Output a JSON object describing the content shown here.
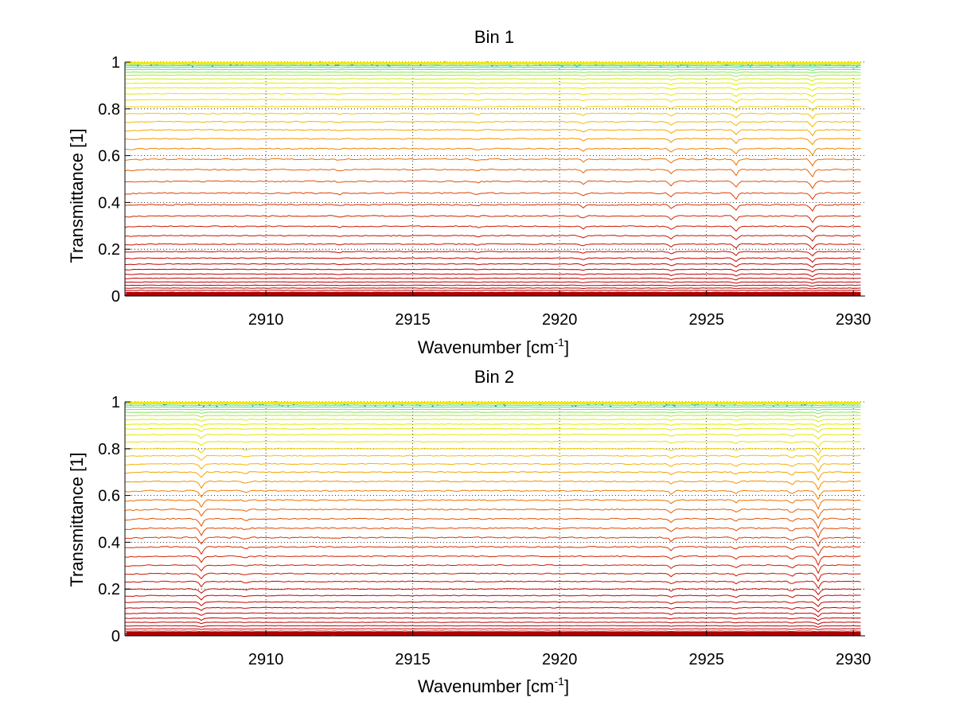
{
  "chart_data": [
    {
      "type": "line",
      "title": "Bin 1",
      "xlabel_base": "Wavenumber [cm",
      "xlabel_sup": "-1",
      "xlabel_end": "]",
      "ylabel": "Transmittance [1]",
      "xlim": [
        2905.2,
        2930.4
      ],
      "ylim": [
        0,
        1
      ],
      "xticks": [
        2910,
        2915,
        2920,
        2925,
        2930
      ],
      "xtick_labels": [
        "2910",
        "2915",
        "2920",
        "2925",
        "2930"
      ],
      "yticks": [
        0,
        0.2,
        0.4,
        0.6,
        0.8,
        1
      ],
      "ytick_labels": [
        "0",
        "0.2",
        "0.4",
        "0.6",
        "0.8",
        "1"
      ],
      "grid": true,
      "grid_style": "dotted",
      "colormap": [
        "#c00000",
        "#e04000",
        "#f07a00",
        "#f5b000",
        "#f0e000",
        "#e0f000",
        "#20d0d0"
      ],
      "series_levels": [
        0.003,
        0.006,
        0.01,
        0.016,
        0.024,
        0.034,
        0.046,
        0.06,
        0.076,
        0.094,
        0.114,
        0.137,
        0.162,
        0.19,
        0.222,
        0.258,
        0.298,
        0.342,
        0.39,
        0.44,
        0.49,
        0.54,
        0.585,
        0.63,
        0.672,
        0.71,
        0.745,
        0.78,
        0.81,
        0.84,
        0.865,
        0.89,
        0.91,
        0.928,
        0.944,
        0.957,
        0.968,
        0.977,
        0.984,
        0.99,
        0.995
      ],
      "features": [
        {
          "x": 2920.8,
          "depth": 0.012
        },
        {
          "x": 2923.8,
          "depth": 0.018
        },
        {
          "x": 2926.0,
          "depth": 0.025
        },
        {
          "x": 2928.6,
          "depth": 0.03
        },
        {
          "x": 2912.5,
          "depth": 0.006
        },
        {
          "x": 2917.2,
          "depth": 0.006
        }
      ]
    },
    {
      "type": "line",
      "title": "Bin 2",
      "xlabel_base": "Wavenumber [cm",
      "xlabel_sup": "-1",
      "xlabel_end": "]",
      "ylabel": "Transmittance [1]",
      "xlim": [
        2905.2,
        2930.4
      ],
      "ylim": [
        0,
        1
      ],
      "xticks": [
        2910,
        2915,
        2920,
        2925,
        2930
      ],
      "xtick_labels": [
        "2910",
        "2915",
        "2920",
        "2925",
        "2930"
      ],
      "yticks": [
        0,
        0.2,
        0.4,
        0.6,
        0.8,
        1
      ],
      "ytick_labels": [
        "0",
        "0.2",
        "0.4",
        "0.6",
        "0.8",
        "1"
      ],
      "grid": true,
      "grid_style": "dotted",
      "colormap": [
        "#c00000",
        "#e04000",
        "#f07a00",
        "#f5b000",
        "#f0e000",
        "#e0f000",
        "#20d0d0"
      ],
      "series_levels": [
        0.003,
        0.007,
        0.012,
        0.02,
        0.03,
        0.043,
        0.058,
        0.076,
        0.097,
        0.12,
        0.145,
        0.172,
        0.2,
        0.232,
        0.266,
        0.302,
        0.34,
        0.38,
        0.42,
        0.46,
        0.5,
        0.54,
        0.58,
        0.62,
        0.66,
        0.7,
        0.735,
        0.77,
        0.8,
        0.83,
        0.86,
        0.885,
        0.905,
        0.925,
        0.942,
        0.956,
        0.968,
        0.978,
        0.986,
        0.992,
        0.997
      ],
      "features": [
        {
          "x": 2907.8,
          "depth": 0.03
        },
        {
          "x": 2928.8,
          "depth": 0.04
        },
        {
          "x": 2923.8,
          "depth": 0.015
        },
        {
          "x": 2926.0,
          "depth": 0.012
        },
        {
          "x": 2927.9,
          "depth": 0.015
        },
        {
          "x": 2909.3,
          "depth": 0.008
        }
      ]
    }
  ]
}
